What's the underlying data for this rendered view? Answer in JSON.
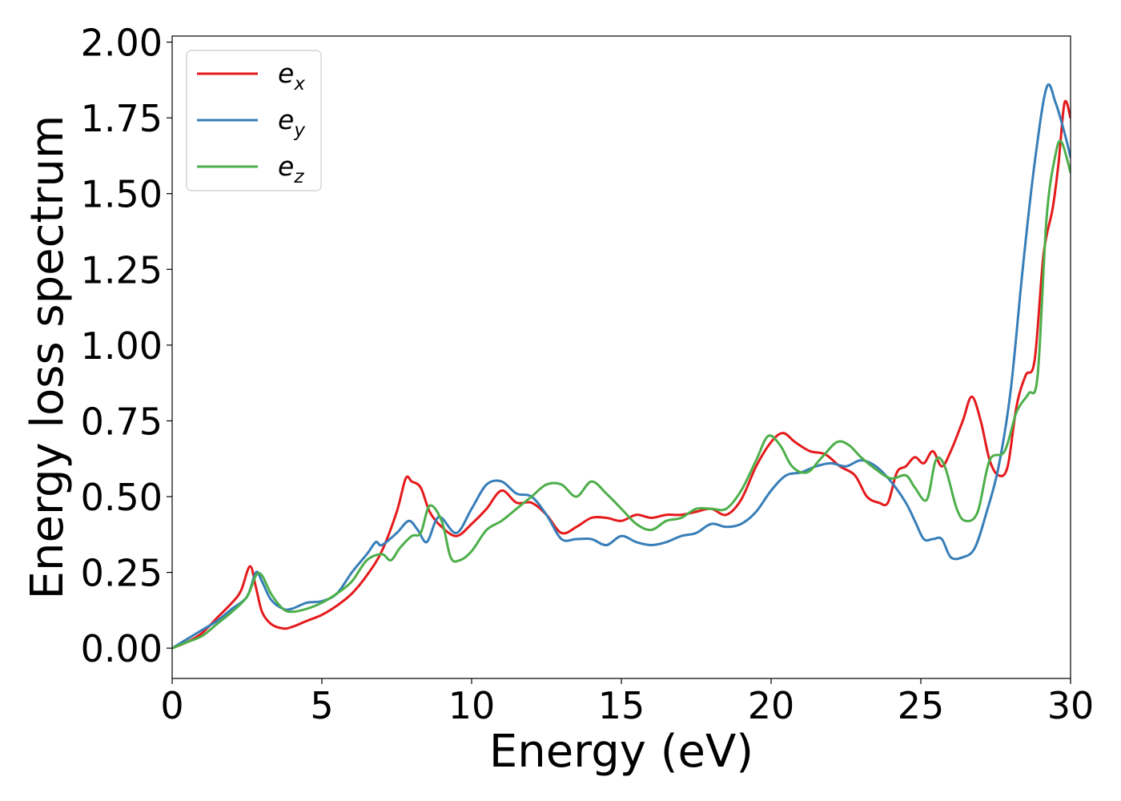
{
  "chart_data": {
    "type": "line",
    "title": "",
    "xlabel": "Energy (eV)",
    "ylabel": "Energy loss spectrum",
    "xlim": [
      0,
      30
    ],
    "ylim": [
      -0.1,
      2.02
    ],
    "x_ticks": [
      "0",
      "5",
      "10",
      "15",
      "20",
      "25",
      "30"
    ],
    "y_ticks": [
      "0.00",
      "0.25",
      "0.50",
      "0.75",
      "1.00",
      "1.25",
      "1.50",
      "1.75",
      "2.00"
    ],
    "grid": false,
    "legend_position": "upper left",
    "series": [
      {
        "name": "e",
        "subscript": "x",
        "color": "#e41a1c",
        "x": [
          0,
          0.5,
          1,
          1.5,
          2,
          2.3,
          2.6,
          2.8,
          3.0,
          3.3,
          3.7,
          4.0,
          4.5,
          5.0,
          5.5,
          6.0,
          6.5,
          7.0,
          7.5,
          7.8,
          8.0,
          8.3,
          8.6,
          9.0,
          9.5,
          10.0,
          10.5,
          11.0,
          11.5,
          12.0,
          12.5,
          13.0,
          13.5,
          14.0,
          14.5,
          15.0,
          15.5,
          16.0,
          16.5,
          17.0,
          17.5,
          18.0,
          18.5,
          19.0,
          19.5,
          20.0,
          20.4,
          20.8,
          21.3,
          21.8,
          22.3,
          22.8,
          23.2,
          23.6,
          23.9,
          24.2,
          24.5,
          24.8,
          25.1,
          25.4,
          25.7,
          26.0,
          26.4,
          26.7,
          27.0,
          27.3,
          27.6,
          27.9,
          28.2,
          28.5,
          28.8,
          29.1,
          29.4,
          29.6,
          29.8,
          30.0
        ],
        "y": [
          0.0,
          0.02,
          0.05,
          0.1,
          0.15,
          0.19,
          0.27,
          0.2,
          0.12,
          0.08,
          0.065,
          0.07,
          0.09,
          0.11,
          0.14,
          0.18,
          0.24,
          0.32,
          0.45,
          0.56,
          0.55,
          0.53,
          0.45,
          0.4,
          0.37,
          0.41,
          0.46,
          0.52,
          0.48,
          0.48,
          0.44,
          0.38,
          0.4,
          0.43,
          0.43,
          0.42,
          0.44,
          0.43,
          0.44,
          0.44,
          0.45,
          0.46,
          0.44,
          0.49,
          0.6,
          0.68,
          0.71,
          0.68,
          0.65,
          0.64,
          0.6,
          0.57,
          0.5,
          0.48,
          0.48,
          0.58,
          0.6,
          0.63,
          0.61,
          0.65,
          0.6,
          0.65,
          0.75,
          0.83,
          0.75,
          0.62,
          0.57,
          0.6,
          0.8,
          0.9,
          0.95,
          1.3,
          1.45,
          1.6,
          1.8,
          1.75
        ]
      },
      {
        "name": "e",
        "subscript": "y",
        "color": "#377eb8",
        "x": [
          0,
          0.5,
          1,
          1.5,
          2,
          2.5,
          2.8,
          3.0,
          3.3,
          3.7,
          4.0,
          4.5,
          5.0,
          5.5,
          6.0,
          6.5,
          6.8,
          7.0,
          7.5,
          7.9,
          8.2,
          8.5,
          8.8,
          9.0,
          9.5,
          10.0,
          10.5,
          11.0,
          11.5,
          12.0,
          12.5,
          13.0,
          13.5,
          14.0,
          14.5,
          15.0,
          15.5,
          16.0,
          16.5,
          17.0,
          17.5,
          18.0,
          18.5,
          19.0,
          19.5,
          20.0,
          20.5,
          21.0,
          21.5,
          22.0,
          22.5,
          23.0,
          23.5,
          24.0,
          24.5,
          24.8,
          25.1,
          25.4,
          25.7,
          26.0,
          26.4,
          26.8,
          27.2,
          27.6,
          28.0,
          28.4,
          28.8,
          29.2,
          29.5,
          29.8,
          30.0
        ],
        "y": [
          0.0,
          0.03,
          0.06,
          0.09,
          0.13,
          0.17,
          0.25,
          0.22,
          0.16,
          0.13,
          0.13,
          0.15,
          0.155,
          0.18,
          0.25,
          0.31,
          0.35,
          0.34,
          0.38,
          0.42,
          0.39,
          0.35,
          0.42,
          0.43,
          0.38,
          0.46,
          0.54,
          0.55,
          0.51,
          0.5,
          0.44,
          0.36,
          0.36,
          0.36,
          0.34,
          0.37,
          0.35,
          0.34,
          0.35,
          0.37,
          0.38,
          0.41,
          0.4,
          0.41,
          0.45,
          0.52,
          0.57,
          0.58,
          0.6,
          0.61,
          0.6,
          0.62,
          0.6,
          0.55,
          0.48,
          0.42,
          0.36,
          0.36,
          0.36,
          0.3,
          0.3,
          0.33,
          0.45,
          0.6,
          0.85,
          1.25,
          1.6,
          1.85,
          1.8,
          1.7,
          1.62
        ]
      },
      {
        "name": "e",
        "subscript": "z",
        "color": "#4daf4a",
        "x": [
          0,
          0.5,
          1,
          1.5,
          2,
          2.5,
          2.8,
          3.0,
          3.3,
          3.7,
          4.0,
          4.5,
          5.0,
          5.5,
          6.0,
          6.5,
          7.0,
          7.3,
          7.6,
          8.0,
          8.3,
          8.6,
          9.0,
          9.3,
          9.6,
          10.0,
          10.5,
          11.0,
          11.5,
          12.0,
          12.5,
          13.0,
          13.5,
          14.0,
          14.5,
          15.0,
          15.5,
          16.0,
          16.5,
          17.0,
          17.5,
          18.0,
          18.5,
          19.0,
          19.5,
          19.9,
          20.3,
          20.7,
          21.2,
          21.7,
          22.2,
          22.6,
          23.0,
          23.5,
          24.0,
          24.5,
          24.8,
          25.2,
          25.5,
          25.8,
          26.2,
          26.5,
          26.9,
          27.3,
          27.8,
          28.2,
          28.6,
          28.9,
          29.2,
          29.5,
          29.7,
          30.0
        ],
        "y": [
          0.0,
          0.02,
          0.04,
          0.08,
          0.12,
          0.17,
          0.24,
          0.24,
          0.18,
          0.13,
          0.12,
          0.13,
          0.15,
          0.18,
          0.22,
          0.29,
          0.31,
          0.29,
          0.33,
          0.37,
          0.38,
          0.47,
          0.42,
          0.3,
          0.29,
          0.32,
          0.39,
          0.42,
          0.46,
          0.5,
          0.54,
          0.54,
          0.5,
          0.55,
          0.51,
          0.46,
          0.41,
          0.39,
          0.42,
          0.43,
          0.46,
          0.46,
          0.46,
          0.52,
          0.62,
          0.7,
          0.67,
          0.6,
          0.58,
          0.63,
          0.68,
          0.67,
          0.63,
          0.59,
          0.56,
          0.57,
          0.53,
          0.49,
          0.62,
          0.6,
          0.46,
          0.42,
          0.45,
          0.62,
          0.65,
          0.78,
          0.84,
          0.9,
          1.42,
          1.63,
          1.67,
          1.57
        ]
      }
    ]
  }
}
